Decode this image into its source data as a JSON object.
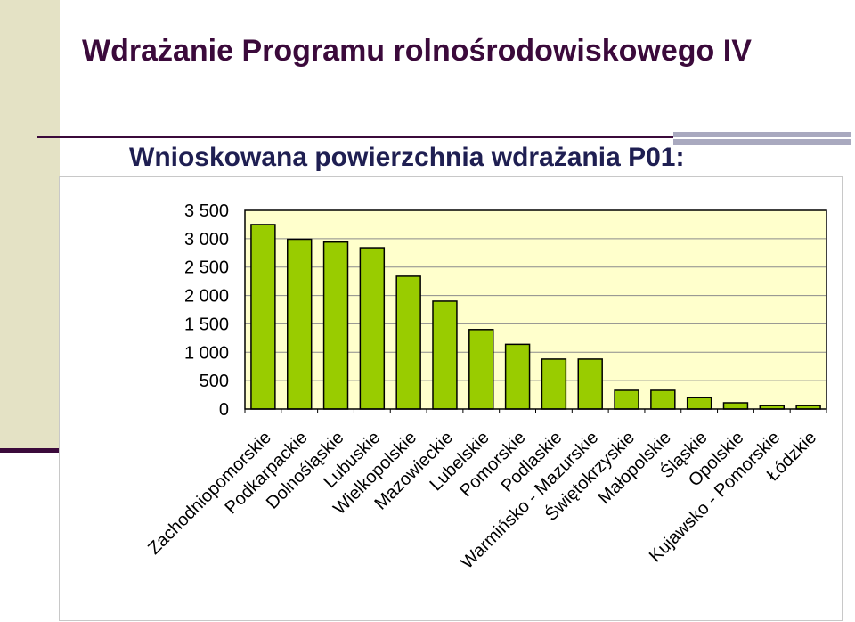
{
  "slide": {
    "title": "Wdrażanie Programu rolnośrodowiskowego IV",
    "subtitle": "Wnioskowana powierzchnia wdrażania P01:"
  },
  "colors": {
    "title": "#3b0a3b",
    "subtitle": "#1f1f52",
    "bar_fill": "#99cc00",
    "plot_background": "#ffffcc",
    "left_band": "#e4e2c5"
  },
  "chart_data": {
    "type": "bar",
    "title": "",
    "xlabel": "",
    "ylabel": "",
    "ylim": [
      0,
      3500
    ],
    "yticks": [
      0,
      500,
      1000,
      1500,
      2000,
      2500,
      3000,
      3500
    ],
    "ytick_labels": [
      "0",
      "500",
      "1 000",
      "1 500",
      "2 000",
      "2 500",
      "3 000",
      "3 500"
    ],
    "grid": true,
    "legend": "none",
    "categories": [
      "Zachodniopomorskie",
      "Podkarpackie",
      "Dolnośląskie",
      "Lubuskie",
      "Wielkopolskie",
      "Mazowieckie",
      "Lubelskie",
      "Pomorskie",
      "Podlaskie",
      "Warmińsko - Mazurskie",
      "Świętokrzyskie",
      "Małopolskie",
      "Śląskie",
      "Opolskie",
      "Kujawsko - Pomorskie",
      "Łódzkie"
    ],
    "values": [
      3250,
      2990,
      2940,
      2840,
      2340,
      1900,
      1400,
      1140,
      880,
      880,
      330,
      330,
      200,
      110,
      60,
      60
    ]
  }
}
